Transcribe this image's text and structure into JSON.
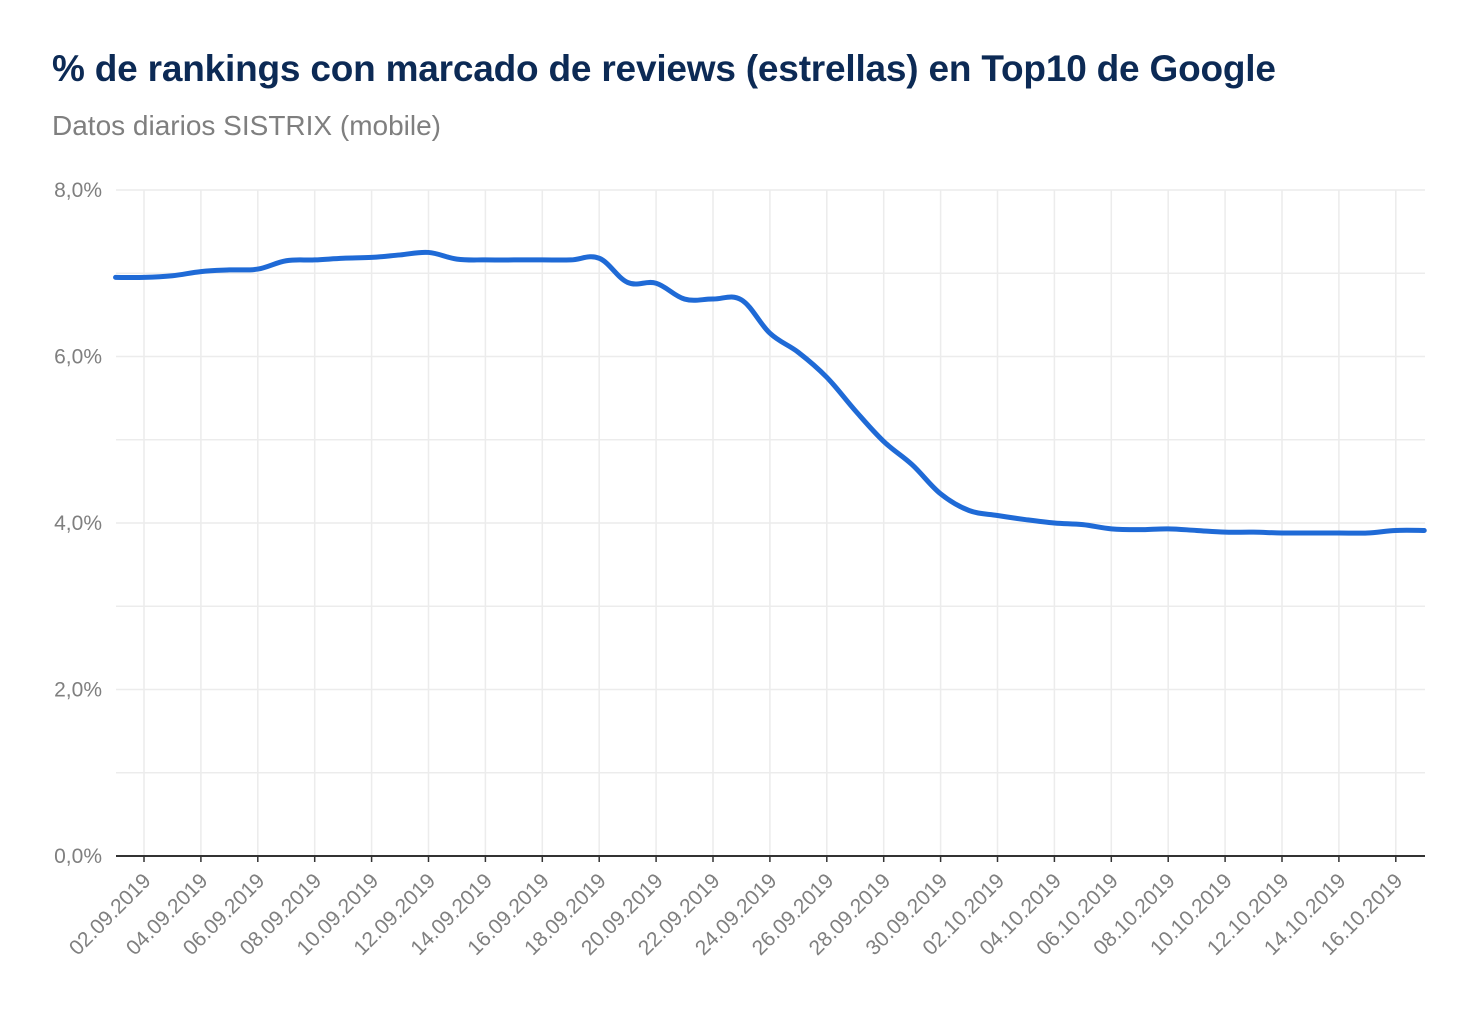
{
  "chart_data": {
    "type": "line",
    "title": "% de rankings con marcado de reviews (estrellas) en Top10 de Google",
    "subtitle": "Datos diarios SISTRIX (mobile)",
    "xlabel": "",
    "ylabel": "",
    "ylim": [
      0,
      8
    ],
    "y_ticks": [
      {
        "value": 0,
        "label": "0,0%"
      },
      {
        "value": 2,
        "label": "2,0%"
      },
      {
        "value": 4,
        "label": "4,0%"
      },
      {
        "value": 6,
        "label": "6,0%"
      },
      {
        "value": 8,
        "label": "8,0%"
      }
    ],
    "x_tick_labels": [
      "02.09.2019",
      "04.09.2019",
      "06.09.2019",
      "08.09.2019",
      "10.09.2019",
      "12.09.2019",
      "14.09.2019",
      "16.09.2019",
      "18.09.2019",
      "20.09.2019",
      "22.09.2019",
      "24.09.2019",
      "26.09.2019",
      "28.09.2019",
      "30.09.2019",
      "02.10.2019",
      "04.10.2019",
      "06.10.2019",
      "08.10.2019",
      "10.10.2019",
      "12.10.2019",
      "14.10.2019",
      "16.10.2019"
    ],
    "grid": true,
    "line_color": "#1f6ad6",
    "series": [
      {
        "x": [
          "01.09.2019",
          "02.09.2019",
          "03.09.2019",
          "04.09.2019",
          "05.09.2019",
          "06.09.2019",
          "07.09.2019",
          "08.09.2019",
          "09.09.2019",
          "10.09.2019",
          "11.09.2019",
          "12.09.2019",
          "13.09.2019",
          "14.09.2019",
          "15.09.2019",
          "16.09.2019",
          "17.09.2019",
          "18.09.2019",
          "19.09.2019",
          "20.09.2019",
          "21.09.2019",
          "22.09.2019",
          "23.09.2019",
          "24.09.2019",
          "25.09.2019",
          "26.09.2019",
          "27.09.2019",
          "28.09.2019",
          "29.09.2019",
          "30.09.2019",
          "01.10.2019",
          "02.10.2019",
          "03.10.2019",
          "04.10.2019",
          "05.10.2019",
          "06.10.2019",
          "07.10.2019",
          "08.10.2019",
          "09.10.2019",
          "10.10.2019",
          "11.10.2019",
          "12.10.2019",
          "13.10.2019",
          "14.10.2019",
          "15.10.2019",
          "16.10.2019",
          "17.10.2019"
        ],
        "values": [
          6.95,
          6.95,
          6.97,
          7.02,
          7.04,
          7.05,
          7.15,
          7.16,
          7.18,
          7.19,
          7.22,
          7.25,
          7.17,
          7.16,
          7.16,
          7.16,
          7.16,
          7.18,
          6.89,
          6.88,
          6.69,
          6.69,
          6.68,
          6.28,
          6.05,
          5.75,
          5.35,
          4.98,
          4.7,
          4.35,
          4.15,
          4.09,
          4.04,
          4.0,
          3.98,
          3.93,
          3.92,
          3.93,
          3.91,
          3.89,
          3.89,
          3.88,
          3.88,
          3.88,
          3.88,
          3.91,
          3.91
        ]
      }
    ]
  }
}
